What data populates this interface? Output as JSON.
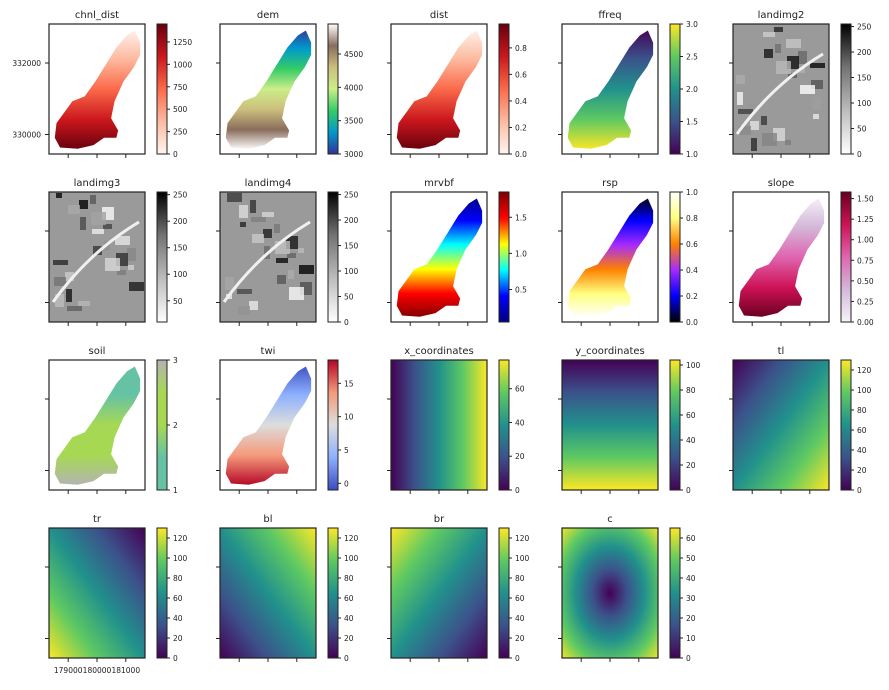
{
  "figure": {
    "x_tick_labels": [
      "179000",
      "180000",
      "181000"
    ],
    "y_tick_labels": [
      "332000",
      "330000"
    ]
  },
  "chart_data": [
    {
      "type": "heatmap",
      "title": "chnl_dist",
      "cmap": "reds",
      "colorbar_ticks": [
        "0",
        "250",
        "500",
        "750",
        "1000",
        "1250"
      ],
      "vmin": 0,
      "vmax": 1450
    },
    {
      "type": "heatmap",
      "title": "dem",
      "cmap": "terrain",
      "colorbar_ticks": [
        "3000",
        "3500",
        "4000",
        "4500"
      ],
      "vmin": 3000,
      "vmax": 4950
    },
    {
      "type": "heatmap",
      "title": "dist",
      "cmap": "reds",
      "colorbar_ticks": [
        "0.0",
        "0.2",
        "0.4",
        "0.6",
        "0.8"
      ],
      "vmin": 0,
      "vmax": 0.98
    },
    {
      "type": "heatmap",
      "title": "ffreq",
      "cmap": "viridis",
      "colorbar_ticks": [
        "1.0",
        "1.5",
        "2.0",
        "2.5",
        "3.0"
      ],
      "vmin": 1,
      "vmax": 3
    },
    {
      "type": "heatmap",
      "title": "landimg2",
      "cmap": "greys",
      "colorbar_ticks": [
        "0",
        "50",
        "100",
        "150",
        "200",
        "250"
      ],
      "vmin": 0,
      "vmax": 255
    },
    {
      "type": "heatmap",
      "title": "landimg3",
      "cmap": "greys",
      "colorbar_ticks": [
        "50",
        "100",
        "150",
        "200",
        "250"
      ],
      "vmin": 10,
      "vmax": 255
    },
    {
      "type": "heatmap",
      "title": "landimg4",
      "cmap": "greys",
      "colorbar_ticks": [
        "0",
        "50",
        "100",
        "150",
        "200",
        "250"
      ],
      "vmin": 0,
      "vmax": 255
    },
    {
      "type": "heatmap",
      "title": "mrvbf",
      "cmap": "jet",
      "colorbar_ticks": [
        "0.5",
        "1.0",
        "1.5"
      ],
      "vmin": 0.05,
      "vmax": 1.85
    },
    {
      "type": "heatmap",
      "title": "rsp",
      "cmap": "gnuplot2",
      "colorbar_ticks": [
        "0.0",
        "0.2",
        "0.4",
        "0.6",
        "0.8",
        "1.0"
      ],
      "vmin": 0,
      "vmax": 1
    },
    {
      "type": "heatmap",
      "title": "slope",
      "cmap": "purd",
      "colorbar_ticks": [
        "0.00",
        "0.25",
        "0.50",
        "0.75",
        "1.00",
        "1.25",
        "1.50"
      ],
      "vmin": 0,
      "vmax": 1.58
    },
    {
      "type": "heatmap",
      "title": "soil",
      "cmap": "soil",
      "colorbar_ticks": [
        "1",
        "2",
        "3"
      ],
      "vmin": 1,
      "vmax": 3
    },
    {
      "type": "heatmap",
      "title": "twi",
      "cmap": "coolwarm",
      "colorbar_ticks": [
        "0",
        "5",
        "10",
        "15"
      ],
      "vmin": -1,
      "vmax": 18.5
    },
    {
      "type": "heatmap",
      "title": "x_coordinates",
      "cmap": "viridis",
      "colorbar_ticks": [
        "0",
        "20",
        "40",
        "60"
      ],
      "vmin": 0,
      "vmax": 77
    },
    {
      "type": "heatmap",
      "title": "y_coordinates",
      "cmap": "viridis",
      "colorbar_ticks": [
        "0",
        "20",
        "40",
        "60",
        "80",
        "100"
      ],
      "vmin": 0,
      "vmax": 104
    },
    {
      "type": "heatmap",
      "title": "tl",
      "cmap": "viridis",
      "colorbar_ticks": [
        "0",
        "20",
        "40",
        "60",
        "80",
        "100",
        "120"
      ],
      "vmin": 0,
      "vmax": 130
    },
    {
      "type": "heatmap",
      "title": "tr",
      "cmap": "viridis",
      "colorbar_ticks": [
        "0",
        "20",
        "40",
        "60",
        "80",
        "100",
        "120"
      ],
      "vmin": 0,
      "vmax": 130
    },
    {
      "type": "heatmap",
      "title": "bl",
      "cmap": "viridis",
      "colorbar_ticks": [
        "0",
        "20",
        "40",
        "60",
        "80",
        "100",
        "120"
      ],
      "vmin": 0,
      "vmax": 130
    },
    {
      "type": "heatmap",
      "title": "br",
      "cmap": "viridis",
      "colorbar_ticks": [
        "0",
        "20",
        "40",
        "60",
        "80",
        "100",
        "120"
      ],
      "vmin": 0,
      "vmax": 130
    },
    {
      "type": "heatmap",
      "title": "c",
      "cmap": "viridis",
      "colorbar_ticks": [
        "0",
        "10",
        "20",
        "30",
        "40",
        "50",
        "60"
      ],
      "vmin": 0,
      "vmax": 65
    }
  ]
}
